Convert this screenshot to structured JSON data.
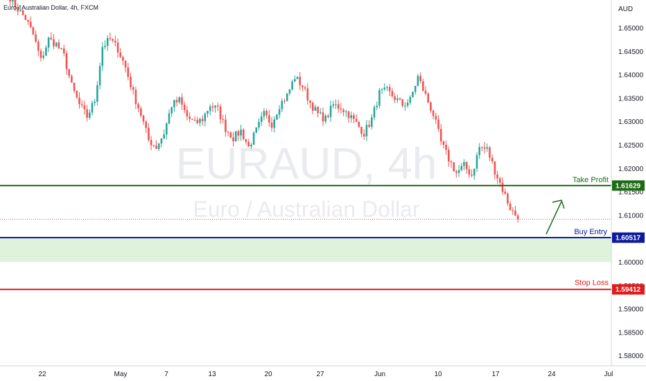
{
  "header": {
    "title": "Euro / Australian Dollar, 4h, FXCM"
  },
  "watermark": {
    "symbol": "EURAUD, 4h",
    "name": "Euro / Australian Dollar"
  },
  "price_axis": {
    "currency": "AUD",
    "ticks": [
      "1.65000",
      "1.64500",
      "1.64000",
      "1.63500",
      "1.63000",
      "1.62500",
      "1.62000",
      "1.61500",
      "1.61000",
      "1.60500",
      "1.60000",
      "1.59500",
      "1.59000",
      "1.58500",
      "1.58000"
    ]
  },
  "time_axis": {
    "ticks": [
      "22",
      "May",
      "7",
      "13",
      "20",
      "27",
      "Jun",
      "10",
      "17",
      "24",
      "Jul"
    ]
  },
  "levels": {
    "take_profit": {
      "label": "Take Profit",
      "value": "1.61629",
      "color": "#1e6b16"
    },
    "buy_entry": {
      "label": "Buy Entry",
      "value": "1.60517",
      "color": "#0c1a9e"
    },
    "stop_loss": {
      "label": "Stop Loss",
      "value": "1.59412",
      "color": "#e01b1b"
    }
  },
  "colors": {
    "up": "#26a69a",
    "down": "#ef5350",
    "zone": "#dff2dc",
    "arrow": "#1e6b16"
  },
  "chart_data": {
    "type": "candlestick",
    "symbol": "EURAUD",
    "timeframe": "4h",
    "x_ticks": [
      "22",
      "May",
      "7",
      "13",
      "20",
      "27",
      "Jun",
      "10",
      "17",
      "24",
      "Jul"
    ],
    "ylim": [
      1.578,
      1.6575
    ],
    "y_ticks": [
      1.65,
      1.645,
      1.64,
      1.635,
      1.63,
      1.625,
      1.62,
      1.615,
      1.61,
      1.605,
      1.6,
      1.595,
      1.59,
      1.585,
      1.58
    ],
    "horizontal_levels": [
      {
        "name": "Take Profit",
        "value": 1.61629
      },
      {
        "name": "Buy Entry",
        "value": 1.60517
      },
      {
        "name": "Stop Loss",
        "value": 1.59412
      }
    ],
    "buy_zone": [
      1.6,
      1.60517
    ],
    "last_price": 1.6091,
    "path": [
      [
        0,
        1.6575
      ],
      [
        3,
        1.6565
      ],
      [
        6,
        1.654
      ],
      [
        9,
        1.652
      ],
      [
        12,
        1.6485
      ],
      [
        15,
        1.643
      ],
      [
        18,
        1.6475
      ],
      [
        21,
        1.6465
      ],
      [
        24,
        1.644
      ],
      [
        27,
        1.6375
      ],
      [
        30,
        1.6335
      ],
      [
        33,
        1.631
      ],
      [
        36,
        1.6345
      ],
      [
        39,
        1.646
      ],
      [
        42,
        1.6475
      ],
      [
        45,
        1.6455
      ],
      [
        48,
        1.6415
      ],
      [
        51,
        1.636
      ],
      [
        54,
        1.6315
      ],
      [
        57,
        1.626
      ],
      [
        60,
        1.6245
      ],
      [
        63,
        1.6275
      ],
      [
        66,
        1.6335
      ],
      [
        69,
        1.6345
      ],
      [
        72,
        1.631
      ],
      [
        75,
        1.6295
      ],
      [
        78,
        1.6305
      ],
      [
        81,
        1.6335
      ],
      [
        84,
        1.6325
      ],
      [
        87,
        1.6285
      ],
      [
        90,
        1.6265
      ],
      [
        93,
        1.628
      ],
      [
        96,
        1.6245
      ],
      [
        99,
        1.628
      ],
      [
        102,
        1.6315
      ],
      [
        105,
        1.6295
      ],
      [
        108,
        1.6335
      ],
      [
        111,
        1.6355
      ],
      [
        114,
        1.6395
      ],
      [
        117,
        1.6375
      ],
      [
        120,
        1.634
      ],
      [
        123,
        1.6315
      ],
      [
        126,
        1.6305
      ],
      [
        129,
        1.6335
      ],
      [
        132,
        1.633
      ],
      [
        135,
        1.6315
      ],
      [
        138,
        1.6295
      ],
      [
        141,
        1.6275
      ],
      [
        144,
        1.6305
      ],
      [
        147,
        1.636
      ],
      [
        150,
        1.6365
      ],
      [
        153,
        1.635
      ],
      [
        156,
        1.6335
      ],
      [
        159,
        1.6345
      ],
      [
        162,
        1.6395
      ],
      [
        165,
        1.6355
      ],
      [
        168,
        1.6315
      ],
      [
        171,
        1.6255
      ],
      [
        174,
        1.622
      ],
      [
        177,
        1.619
      ],
      [
        180,
        1.6205
      ],
      [
        183,
        1.6185
      ],
      [
        186,
        1.6245
      ],
      [
        189,
        1.624
      ],
      [
        192,
        1.6195
      ],
      [
        195,
        1.6155
      ],
      [
        198,
        1.6115
      ],
      [
        201,
        1.6091
      ]
    ]
  }
}
